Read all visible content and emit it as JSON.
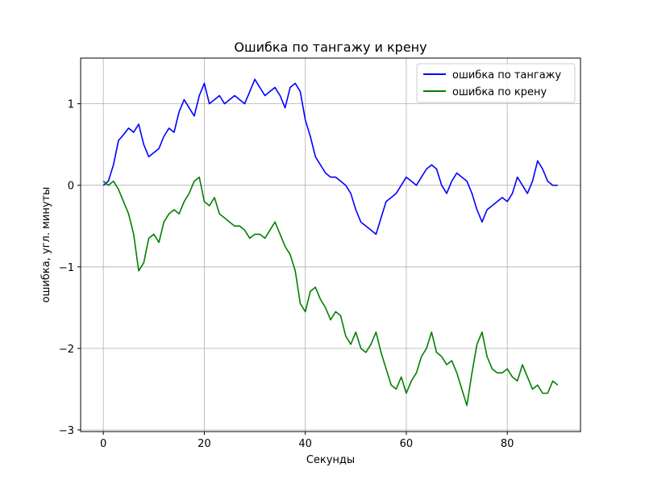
{
  "chart_data": {
    "type": "line",
    "title": "Ошибка по тангажу и крену",
    "xlabel": "Секунды",
    "ylabel": "ошибка, угл. минуты",
    "xlim": [
      -4.5,
      94.5
    ],
    "ylim": [
      -3.02,
      1.56
    ],
    "xticks": [
      0,
      20,
      40,
      60,
      80
    ],
    "yticks": [
      1,
      0,
      -1,
      -2,
      -3
    ],
    "xtick_labels": [
      "0",
      "20",
      "40",
      "60",
      "80"
    ],
    "ytick_labels": [
      "1",
      "0",
      "−1",
      "−2",
      "−3"
    ],
    "grid": true,
    "legend_position": "top-right",
    "series": [
      {
        "name": "ошибка по тангажу",
        "color": "#0000ff",
        "x": [
          0,
          1,
          2,
          3,
          4,
          5,
          6,
          7,
          8,
          9,
          10,
          11,
          12,
          13,
          14,
          15,
          16,
          17,
          18,
          19,
          20,
          21,
          22,
          23,
          24,
          25,
          26,
          27,
          28,
          29,
          30,
          31,
          32,
          33,
          34,
          35,
          36,
          37,
          38,
          39,
          40,
          41,
          42,
          43,
          44,
          45,
          46,
          47,
          48,
          49,
          50,
          51,
          52,
          53,
          54,
          55,
          56,
          57,
          58,
          59,
          60,
          61,
          62,
          63,
          64,
          65,
          66,
          67,
          68,
          69,
          70,
          71,
          72,
          73,
          74,
          75,
          76,
          77,
          78,
          79,
          80,
          81,
          82,
          83,
          84,
          85,
          86,
          87,
          88,
          89,
          90
        ],
        "y": [
          0.0,
          0.05,
          0.25,
          0.55,
          0.62,
          0.7,
          0.65,
          0.75,
          0.5,
          0.35,
          0.4,
          0.45,
          0.6,
          0.7,
          0.65,
          0.9,
          1.05,
          0.95,
          0.85,
          1.1,
          1.25,
          1.0,
          1.05,
          1.1,
          1.0,
          1.05,
          1.1,
          1.05,
          1.0,
          1.15,
          1.3,
          1.2,
          1.1,
          1.15,
          1.2,
          1.1,
          0.95,
          1.2,
          1.25,
          1.15,
          0.8,
          0.6,
          0.35,
          0.25,
          0.15,
          0.1,
          0.1,
          0.05,
          0.0,
          -0.1,
          -0.3,
          -0.45,
          -0.5,
          -0.55,
          -0.6,
          -0.4,
          -0.2,
          -0.15,
          -0.1,
          0.0,
          0.1,
          0.05,
          0.0,
          0.1,
          0.2,
          0.25,
          0.2,
          0.0,
          -0.1,
          0.05,
          0.15,
          0.1,
          0.05,
          -0.1,
          -0.3,
          -0.45,
          -0.3,
          -0.25,
          -0.2,
          -0.15,
          -0.2,
          -0.1,
          0.1,
          0.0,
          -0.1,
          0.05,
          0.3,
          0.2,
          0.05,
          0.0,
          0.0
        ]
      },
      {
        "name": "ошибка по крену",
        "color": "#008000",
        "x": [
          0,
          1,
          2,
          3,
          4,
          5,
          6,
          7,
          8,
          9,
          10,
          11,
          12,
          13,
          14,
          15,
          16,
          17,
          18,
          19,
          20,
          21,
          22,
          23,
          24,
          25,
          26,
          27,
          28,
          29,
          30,
          31,
          32,
          33,
          34,
          35,
          36,
          37,
          38,
          39,
          40,
          41,
          42,
          43,
          44,
          45,
          46,
          47,
          48,
          49,
          50,
          51,
          52,
          53,
          54,
          55,
          56,
          57,
          58,
          59,
          60,
          61,
          62,
          63,
          64,
          65,
          66,
          67,
          68,
          69,
          70,
          71,
          72,
          73,
          74,
          75,
          76,
          77,
          78,
          79,
          80,
          81,
          82,
          83,
          84,
          85,
          86,
          87,
          88,
          89,
          90
        ],
        "y": [
          0.05,
          0.0,
          0.05,
          -0.05,
          -0.2,
          -0.35,
          -0.6,
          -1.05,
          -0.95,
          -0.65,
          -0.6,
          -0.7,
          -0.45,
          -0.35,
          -0.3,
          -0.35,
          -0.2,
          -0.1,
          0.05,
          0.1,
          -0.2,
          -0.25,
          -0.15,
          -0.35,
          -0.4,
          -0.45,
          -0.5,
          -0.5,
          -0.55,
          -0.65,
          -0.6,
          -0.6,
          -0.65,
          -0.55,
          -0.45,
          -0.6,
          -0.75,
          -0.85,
          -1.05,
          -1.45,
          -1.55,
          -1.3,
          -1.25,
          -1.4,
          -1.5,
          -1.65,
          -1.55,
          -1.6,
          -1.85,
          -1.95,
          -1.8,
          -2.0,
          -2.05,
          -1.95,
          -1.8,
          -2.05,
          -2.25,
          -2.45,
          -2.5,
          -2.35,
          -2.55,
          -2.4,
          -2.3,
          -2.1,
          -2.0,
          -1.8,
          -2.05,
          -2.1,
          -2.2,
          -2.15,
          -2.3,
          -2.5,
          -2.7,
          -2.3,
          -1.95,
          -1.8,
          -2.1,
          -2.25,
          -2.3,
          -2.3,
          -2.25,
          -2.35,
          -2.4,
          -2.2,
          -2.35,
          -2.5,
          -2.45,
          -2.55,
          -2.55,
          -2.4,
          -2.45
        ]
      }
    ]
  }
}
